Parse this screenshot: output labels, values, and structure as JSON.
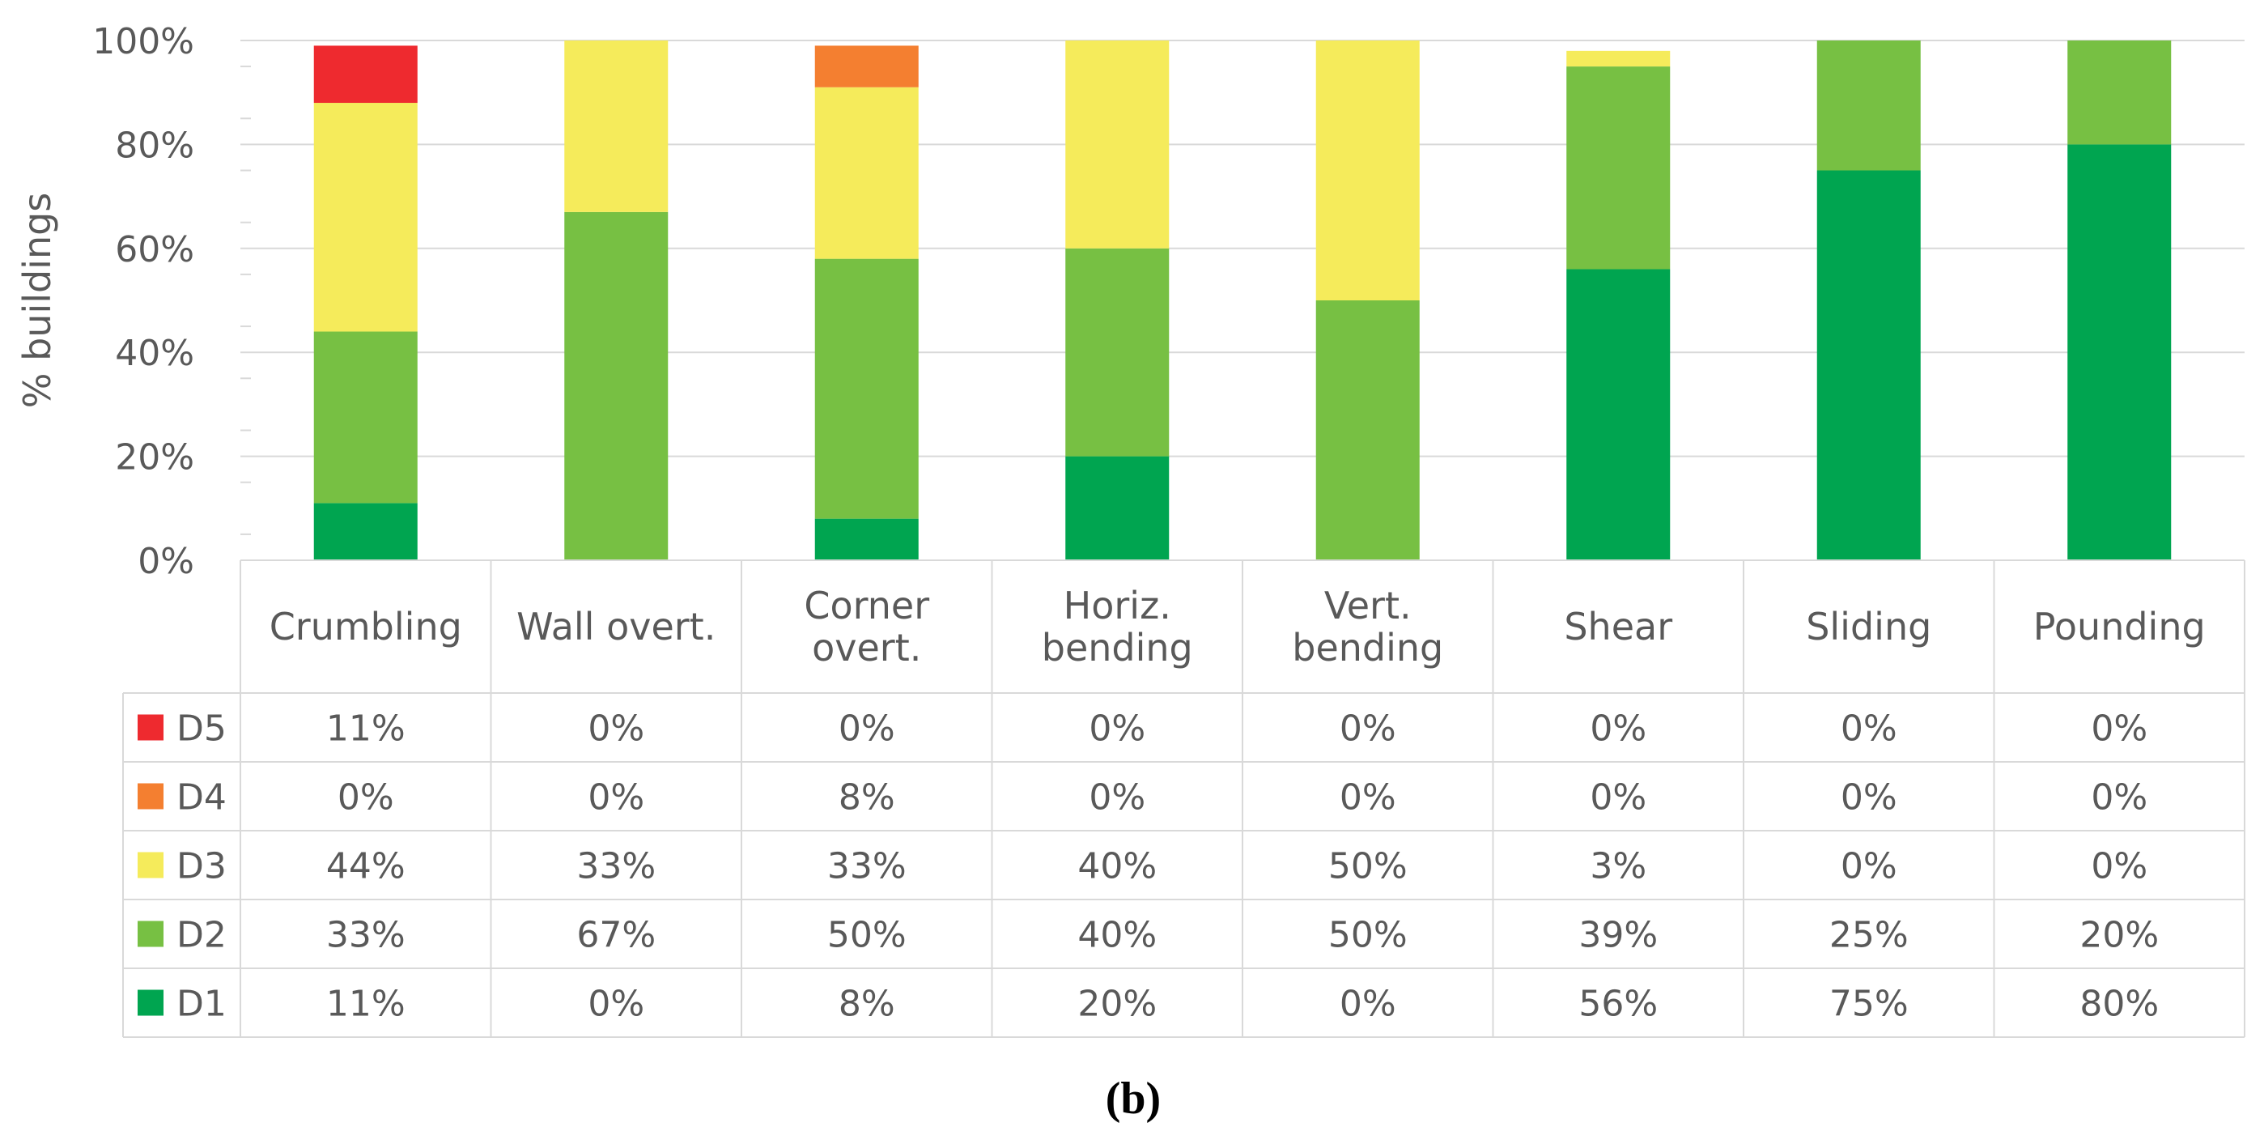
{
  "chart_data": {
    "type": "bar",
    "stacked": true,
    "categories": [
      [
        "Crumbling"
      ],
      [
        "Wall overt."
      ],
      [
        "Corner",
        "overt."
      ],
      [
        "Horiz.",
        "bending"
      ],
      [
        "Vert.",
        "bending"
      ],
      [
        "Shear"
      ],
      [
        "Sliding"
      ],
      [
        "Pounding"
      ]
    ],
    "series": [
      {
        "name": "D1",
        "color": "#00A550",
        "values": [
          11,
          0,
          8,
          20,
          0,
          56,
          75,
          80
        ]
      },
      {
        "name": "D2",
        "color": "#77C043",
        "values": [
          33,
          67,
          50,
          40,
          50,
          39,
          25,
          20
        ]
      },
      {
        "name": "D3",
        "color": "#F5EB5B",
        "values": [
          44,
          33,
          33,
          40,
          50,
          3,
          0,
          0
        ]
      },
      {
        "name": "D4",
        "color": "#F47F30",
        "values": [
          0,
          0,
          8,
          0,
          0,
          0,
          0,
          0
        ]
      },
      {
        "name": "D5",
        "color": "#EE2A2F",
        "values": [
          11,
          0,
          0,
          0,
          0,
          0,
          0,
          0
        ]
      }
    ],
    "table_rows_order": [
      "D5",
      "D4",
      "D3",
      "D2",
      "D1"
    ],
    "ylabel": "% buildings",
    "ylim": [
      0,
      100
    ],
    "yticks": [
      "0%",
      "20%",
      "40%",
      "60%",
      "80%",
      "100%"
    ],
    "value_suffix": "%",
    "legend": "data-table-below",
    "panel_label": "(b)"
  }
}
